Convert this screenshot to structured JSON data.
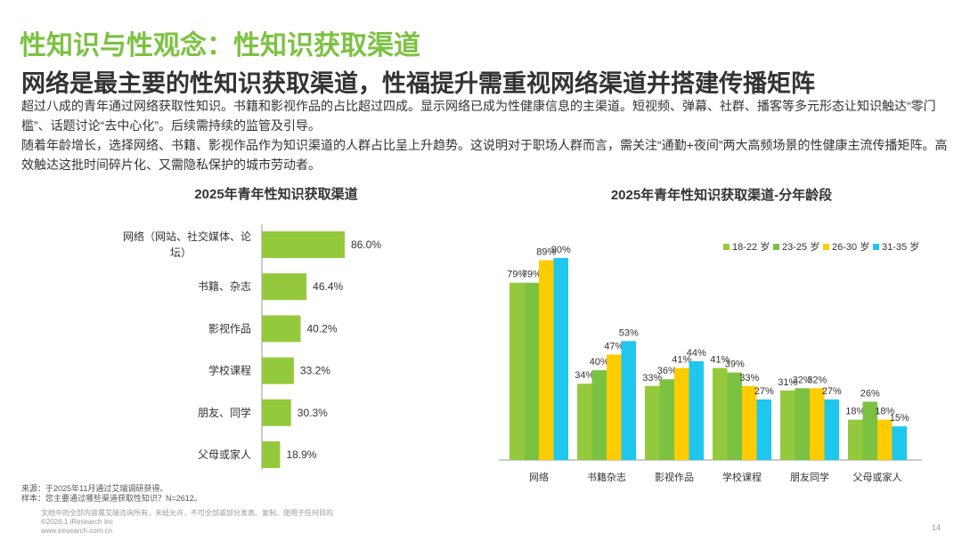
{
  "header": {
    "title": "性知识与性观念：性知识获取渠道",
    "subtitle": "网络是最主要的性知识获取渠道，性福提升需重视网络渠道并搭建传播矩阵"
  },
  "body": {
    "p1": "超过八成的青年通过网络获取性知识。书籍和影视作品的占比超过四成。显示网络已成为性健康信息的主渠道。短视频、弹幕、社群、播客等多元形态让知识触达“零门槛”、话题讨论“去中心化”。后续需持续的监管及引导。",
    "p2": "随着年龄增长，选择网络、书籍、影视作品作为知识渠道的人群占比呈上升趋势。这说明对于职场人群而言，需关注“通勤+夜间”两大高频场景的性健康主流传播矩阵。高效触达这批时间碎片化、又需隐私保护的城市劳动者。"
  },
  "footer": {
    "source": "来源：于2025年11月通过艾瑞调研获得。",
    "sample": "样本：您主要通过哪些渠道获取性知识？N=2612。",
    "disclaimer": "文档中的全部内容属艾瑞咨询所有，未经允许，不可全部或部分发表、复制、使用于任何目的",
    "copyright": "©2026.1 iResearch Inc",
    "website": "www.iresearch.com.cn",
    "page": "14"
  },
  "colors": {
    "green": "#95c93d",
    "green2": "#7cc242",
    "yellow": "#ffcc00",
    "cyan": "#1fc7ee"
  },
  "chart_data": [
    {
      "type": "bar",
      "orientation": "horizontal",
      "title": "2025年青年性知识获取渠道",
      "categories": [
        "网络（网站、社交媒体、论坛）",
        "书籍、杂志",
        "影视作品",
        "学校课程",
        "朋友、同学",
        "父母或家人"
      ],
      "category_lines": [
        [
          "网络（网站、社交媒体、论",
          "坛）"
        ],
        [
          "书籍、杂志"
        ],
        [
          "影视作品"
        ],
        [
          "学校课程"
        ],
        [
          "朋友、同学"
        ],
        [
          "父母或家人"
        ]
      ],
      "values": [
        86.0,
        46.4,
        40.2,
        33.2,
        30.3,
        18.9
      ],
      "value_labels": [
        "86.0%",
        "46.4%",
        "40.2%",
        "33.2%",
        "30.3%",
        "18.9%"
      ],
      "xlim": [
        0,
        100
      ]
    },
    {
      "type": "bar",
      "title": "2025年青年性知识获取渠道-分年龄段",
      "categories": [
        "网络",
        "书籍杂志",
        "影视作品",
        "学校课程",
        "朋友同学",
        "父母或家人"
      ],
      "legend_position": "top-right",
      "series": [
        {
          "name": "18-22 岁",
          "color": "#95c93d",
          "values": [
            79,
            34,
            33,
            41,
            31,
            18
          ]
        },
        {
          "name": "23-25 岁",
          "color": "#7cc242",
          "values": [
            79,
            40,
            36,
            39,
            32,
            26
          ]
        },
        {
          "name": "26-30 岁",
          "color": "#ffcc00",
          "values": [
            89,
            47,
            41,
            33,
            32,
            18
          ]
        },
        {
          "name": "31-35 岁",
          "color": "#1fc7ee",
          "values": [
            90,
            53,
            44,
            27,
            27,
            15
          ]
        }
      ],
      "ylim": [
        0,
        100
      ]
    }
  ]
}
